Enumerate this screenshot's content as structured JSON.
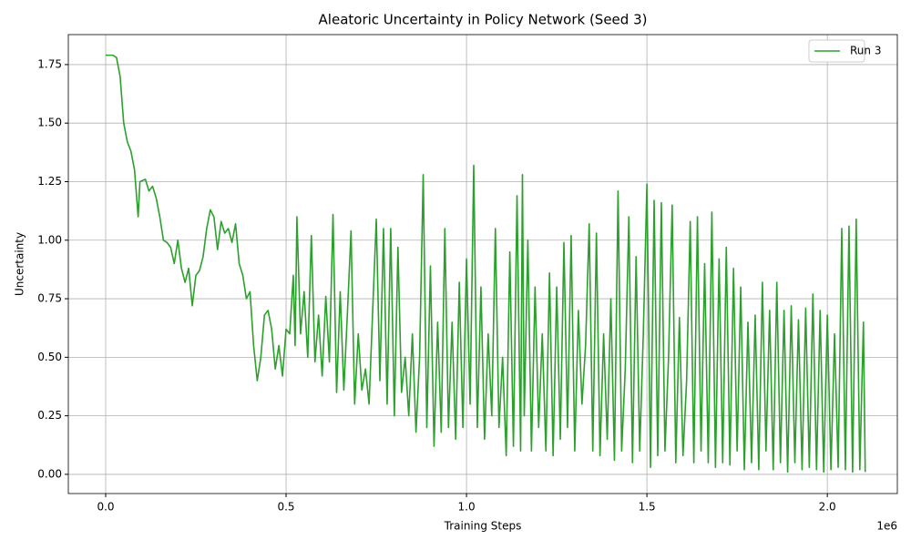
{
  "chart_data": {
    "type": "line",
    "title": "Aleatoric Uncertainty in Policy Network (Seed 3)",
    "x_label": "Training Steps",
    "y_label": "Uncertainty",
    "x_offset_label": "1e6",
    "grid": true,
    "legend": "upper right",
    "xlim": [
      -103500,
      2194000
    ],
    "ylim": [
      -0.082,
      1.878
    ],
    "xticks": [
      {
        "value": 0,
        "label": "0.0"
      },
      {
        "value": 500000,
        "label": "0.5"
      },
      {
        "value": 1000000,
        "label": "1.0"
      },
      {
        "value": 1500000,
        "label": "1.5"
      },
      {
        "value": 2000000,
        "label": "2.0"
      }
    ],
    "yticks": [
      {
        "value": 0,
        "label": "0.00"
      },
      {
        "value": 0.25,
        "label": "0.25"
      },
      {
        "value": 0.5,
        "label": "0.50"
      },
      {
        "value": 0.75,
        "label": "0.75"
      },
      {
        "value": 1,
        "label": "1.00"
      },
      {
        "value": 1.25,
        "label": "1.25"
      },
      {
        "value": 1.5,
        "label": "1.50"
      },
      {
        "value": 1.75,
        "label": "1.75"
      }
    ],
    "x": [
      0,
      20000,
      30000,
      40000,
      50000,
      60000,
      70000,
      80000,
      90000,
      95000,
      110000,
      120000,
      130000,
      140000,
      150000,
      160000,
      170000,
      180000,
      190000,
      200000,
      210000,
      220000,
      230000,
      240000,
      250000,
      260000,
      270000,
      280000,
      290000,
      300000,
      310000,
      320000,
      330000,
      340000,
      350000,
      360000,
      370000,
      380000,
      390000,
      400000,
      410000,
      420000,
      430000,
      440000,
      450000,
      460000,
      470000,
      480000,
      490000,
      500000,
      510000,
      520000,
      525000,
      530000,
      540000,
      550000,
      560000,
      570000,
      580000,
      590000,
      600000,
      610000,
      620000,
      630000,
      640000,
      650000,
      660000,
      670000,
      680000,
      690000,
      700000,
      710000,
      720000,
      730000,
      740000,
      750000,
      760000,
      770000,
      780000,
      790000,
      800000,
      810000,
      820000,
      830000,
      840000,
      850000,
      860000,
      870000,
      880000,
      890000,
      900000,
      910000,
      920000,
      930000,
      940000,
      950000,
      960000,
      970000,
      980000,
      990000,
      1000000,
      1010000,
      1020000,
      1030000,
      1040000,
      1050000,
      1060000,
      1070000,
      1080000,
      1090000,
      1100000,
      1110000,
      1120000,
      1130000,
      1140000,
      1150000,
      1155000,
      1160000,
      1170000,
      1180000,
      1190000,
      1200000,
      1210000,
      1220000,
      1230000,
      1240000,
      1250000,
      1260000,
      1270000,
      1280000,
      1290000,
      1300000,
      1310000,
      1320000,
      1330000,
      1340000,
      1350000,
      1360000,
      1370000,
      1380000,
      1390000,
      1400000,
      1410000,
      1420000,
      1430000,
      1440000,
      1450000,
      1460000,
      1470000,
      1480000,
      1490000,
      1500000,
      1510000,
      1520000,
      1530000,
      1540000,
      1550000,
      1560000,
      1570000,
      1580000,
      1590000,
      1600000,
      1610000,
      1620000,
      1630000,
      1640000,
      1650000,
      1660000,
      1670000,
      1680000,
      1690000,
      1700000,
      1710000,
      1720000,
      1730000,
      1740000,
      1750000,
      1760000,
      1770000,
      1780000,
      1790000,
      1800000,
      1810000,
      1820000,
      1830000,
      1840000,
      1850000,
      1860000,
      1870000,
      1880000,
      1890000,
      1900000,
      1910000,
      1920000,
      1930000,
      1940000,
      1950000,
      1960000,
      1970000,
      1980000,
      1990000,
      2000000,
      2010000,
      2020000,
      2030000,
      2040000,
      2050000,
      2060000,
      2070000,
      2080000,
      2090000,
      2100000,
      2105000
    ],
    "series": [
      {
        "name": "Run 3",
        "color": "#2ca02c",
        "values": [
          1.79,
          1.79,
          1.78,
          1.7,
          1.5,
          1.42,
          1.38,
          1.3,
          1.1,
          1.25,
          1.26,
          1.21,
          1.23,
          1.18,
          1.1,
          1.0,
          0.99,
          0.97,
          0.9,
          1.0,
          0.88,
          0.82,
          0.88,
          0.72,
          0.85,
          0.87,
          0.93,
          1.05,
          1.13,
          1.1,
          0.96,
          1.08,
          1.03,
          1.05,
          0.99,
          1.07,
          0.9,
          0.85,
          0.75,
          0.78,
          0.55,
          0.4,
          0.5,
          0.68,
          0.7,
          0.62,
          0.45,
          0.55,
          0.42,
          0.62,
          0.6,
          0.85,
          0.55,
          1.1,
          0.6,
          0.78,
          0.5,
          1.02,
          0.48,
          0.68,
          0.42,
          0.76,
          0.48,
          1.11,
          0.35,
          0.78,
          0.36,
          0.69,
          1.04,
          0.3,
          0.6,
          0.36,
          0.45,
          0.3,
          0.7,
          1.09,
          0.4,
          1.05,
          0.3,
          1.05,
          0.25,
          0.97,
          0.35,
          0.5,
          0.25,
          0.6,
          0.18,
          0.5,
          1.28,
          0.2,
          0.89,
          0.12,
          0.65,
          0.18,
          1.05,
          0.2,
          0.65,
          0.15,
          0.82,
          0.2,
          0.92,
          0.3,
          1.32,
          0.2,
          0.8,
          0.15,
          0.6,
          0.25,
          1.05,
          0.2,
          0.5,
          0.08,
          0.95,
          0.12,
          1.19,
          0.1,
          1.28,
          0.25,
          1.0,
          0.1,
          0.8,
          0.2,
          0.6,
          0.1,
          0.86,
          0.08,
          0.8,
          0.15,
          0.99,
          0.2,
          1.02,
          0.1,
          0.7,
          0.3,
          0.55,
          1.07,
          0.1,
          1.03,
          0.08,
          0.6,
          0.15,
          0.75,
          0.06,
          1.21,
          0.1,
          0.45,
          1.1,
          0.05,
          0.93,
          0.1,
          0.6,
          1.24,
          0.03,
          1.17,
          0.08,
          1.16,
          0.1,
          0.5,
          1.15,
          0.05,
          0.67,
          0.08,
          0.4,
          1.08,
          0.05,
          1.1,
          0.1,
          0.9,
          0.05,
          1.12,
          0.03,
          0.92,
          0.05,
          0.97,
          0.04,
          0.88,
          0.1,
          0.8,
          0.02,
          0.65,
          0.05,
          0.68,
          0.02,
          0.82,
          0.1,
          0.7,
          0.02,
          0.82,
          0.05,
          0.7,
          0.01,
          0.72,
          0.05,
          0.66,
          0.02,
          0.71,
          0.03,
          0.77,
          0.02,
          0.7,
          0.01,
          0.68,
          0.02,
          0.6,
          0.03,
          1.05,
          0.02,
          1.06,
          0.01,
          1.09,
          0.02,
          0.65,
          0.01
        ]
      }
    ]
  }
}
